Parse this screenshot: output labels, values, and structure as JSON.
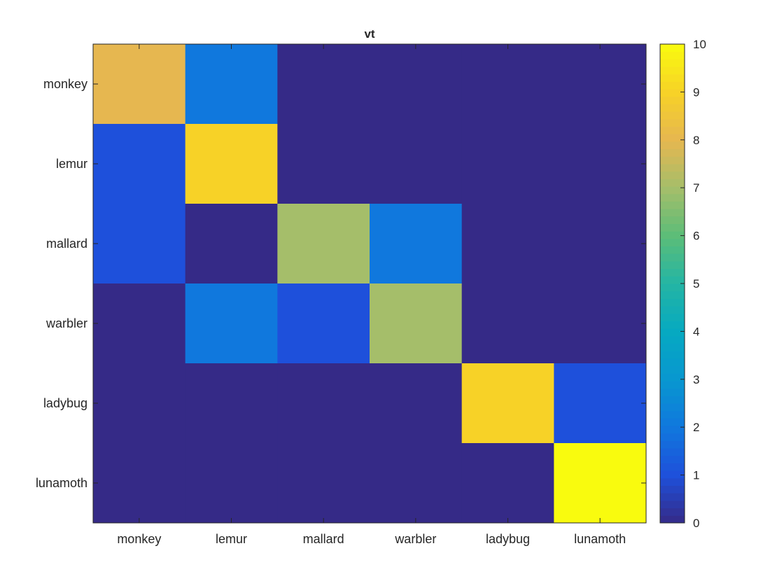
{
  "chart_data": {
    "type": "heatmap",
    "title": "vt",
    "xlabel": "",
    "ylabel": "",
    "x_categories": [
      "monkey",
      "lemur",
      "mallard",
      "warbler",
      "ladybug",
      "lunamoth"
    ],
    "y_categories": [
      "monkey",
      "lemur",
      "mallard",
      "warbler",
      "ladybug",
      "lunamoth"
    ],
    "values": [
      [
        8,
        2,
        0,
        0,
        0,
        0
      ],
      [
        1,
        9,
        0,
        0,
        0,
        0
      ],
      [
        1,
        0,
        7,
        2,
        0,
        0
      ],
      [
        0,
        2,
        1,
        7,
        0,
        0
      ],
      [
        0,
        0,
        0,
        0,
        9,
        1
      ],
      [
        0,
        0,
        0,
        0,
        0,
        10
      ]
    ],
    "colorbar": {
      "colormap": "parula",
      "range": [
        0,
        10
      ],
      "ticks": [
        "0",
        "1",
        "2",
        "3",
        "4",
        "5",
        "6",
        "7",
        "8",
        "9",
        "10"
      ]
    },
    "grid": false
  }
}
